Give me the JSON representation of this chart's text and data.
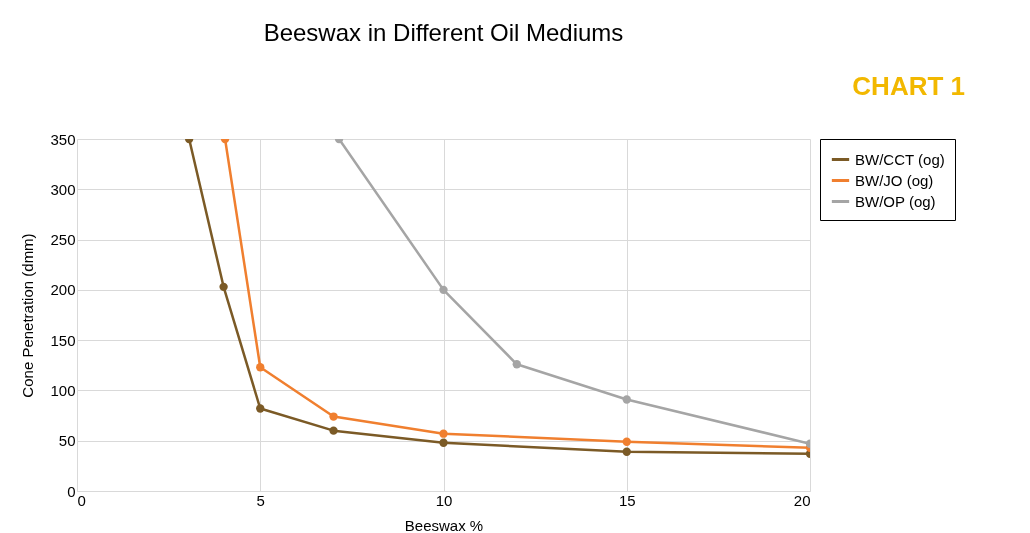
{
  "chart_data": {
    "type": "line",
    "title": "Beeswax in Different Oil Mediums",
    "xlabel": "Beeswax %",
    "ylabel": "Cone Penetration (dmm)",
    "annotations": [
      "CHART 1"
    ],
    "series": [
      {
        "name": "BW/CCT (og)",
        "color": "#7b5a26",
        "x": [
          3.06,
          4,
          5,
          7,
          10,
          15,
          20
        ],
        "values": [
          350,
          203,
          82,
          60,
          48,
          39,
          37
        ]
      },
      {
        "name": "BW/JO (og)",
        "color": "#f07f2f",
        "x": [
          4.04,
          5,
          7,
          10,
          15,
          20
        ],
        "values": [
          350,
          123,
          74,
          57,
          49,
          43
        ]
      },
      {
        "name": "BW/OP (og)",
        "color": "#a5a5a5",
        "x": [
          7.15,
          10,
          12,
          15,
          20
        ],
        "values": [
          350,
          200,
          126,
          91,
          47
        ]
      }
    ],
    "xlim": [
      0,
      20
    ],
    "xticks": [
      0,
      5,
      10,
      15,
      20
    ],
    "ylim": [
      0,
      350
    ],
    "yticks": [
      0,
      50,
      100,
      150,
      200,
      250,
      300,
      350
    ],
    "grid": true,
    "legend": "right",
    "marker": "circle",
    "line_style": "solid"
  }
}
